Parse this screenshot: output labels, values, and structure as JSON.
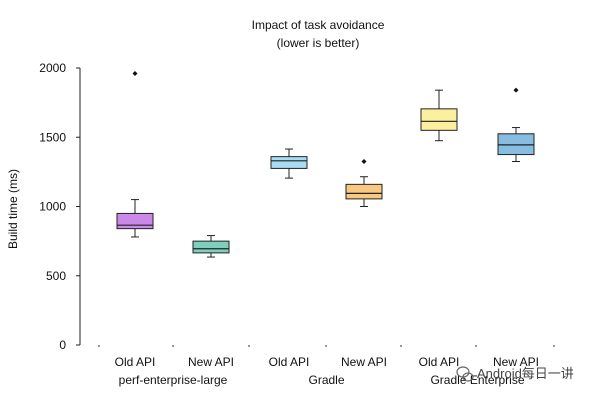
{
  "chart_data": {
    "type": "box",
    "title_lines": [
      "Impact of task avoidance",
      "(lower is better)"
    ],
    "ylabel": "Build time (ms)",
    "ylim": [
      0,
      2000
    ],
    "yticks": [
      "0",
      "500",
      "1000",
      "1500",
      "2000"
    ],
    "grid": false,
    "categories": [
      "Old API",
      "New API",
      "Old API",
      "New API",
      "Old API",
      "New API"
    ],
    "groups": [
      "perf-enterprise-large",
      "Gradle",
      "Gradle Enterprise"
    ],
    "boxes": [
      {
        "label": "Old API",
        "group": "perf-enterprise-large",
        "min": 780,
        "q1": 840,
        "median": 865,
        "q3": 950,
        "max": 1050,
        "outliers": [
          1960
        ],
        "color": "#cc88e8"
      },
      {
        "label": "New API",
        "group": "perf-enterprise-large",
        "min": 635,
        "q1": 665,
        "median": 695,
        "q3": 750,
        "max": 790,
        "outliers": [],
        "color": "#7fcfbd"
      },
      {
        "label": "Old API",
        "group": "Gradle",
        "min": 1205,
        "q1": 1275,
        "median": 1330,
        "q3": 1360,
        "max": 1415,
        "outliers": [],
        "color": "#a8dcf4"
      },
      {
        "label": "New API",
        "group": "Gradle",
        "min": 1000,
        "q1": 1055,
        "median": 1095,
        "q3": 1160,
        "max": 1215,
        "outliers": [
          1325
        ],
        "color": "#f6c880"
      },
      {
        "label": "Old API",
        "group": "Gradle Enterprise",
        "min": 1475,
        "q1": 1550,
        "median": 1615,
        "q3": 1705,
        "max": 1840,
        "outliers": [],
        "color": "#fbf0a0"
      },
      {
        "label": "New API",
        "group": "Gradle Enterprise",
        "min": 1325,
        "q1": 1375,
        "median": 1445,
        "q3": 1525,
        "max": 1570,
        "outliers": [
          1840
        ],
        "color": "#86bde0"
      }
    ]
  },
  "watermark": {
    "text": "Android每日一讲"
  }
}
